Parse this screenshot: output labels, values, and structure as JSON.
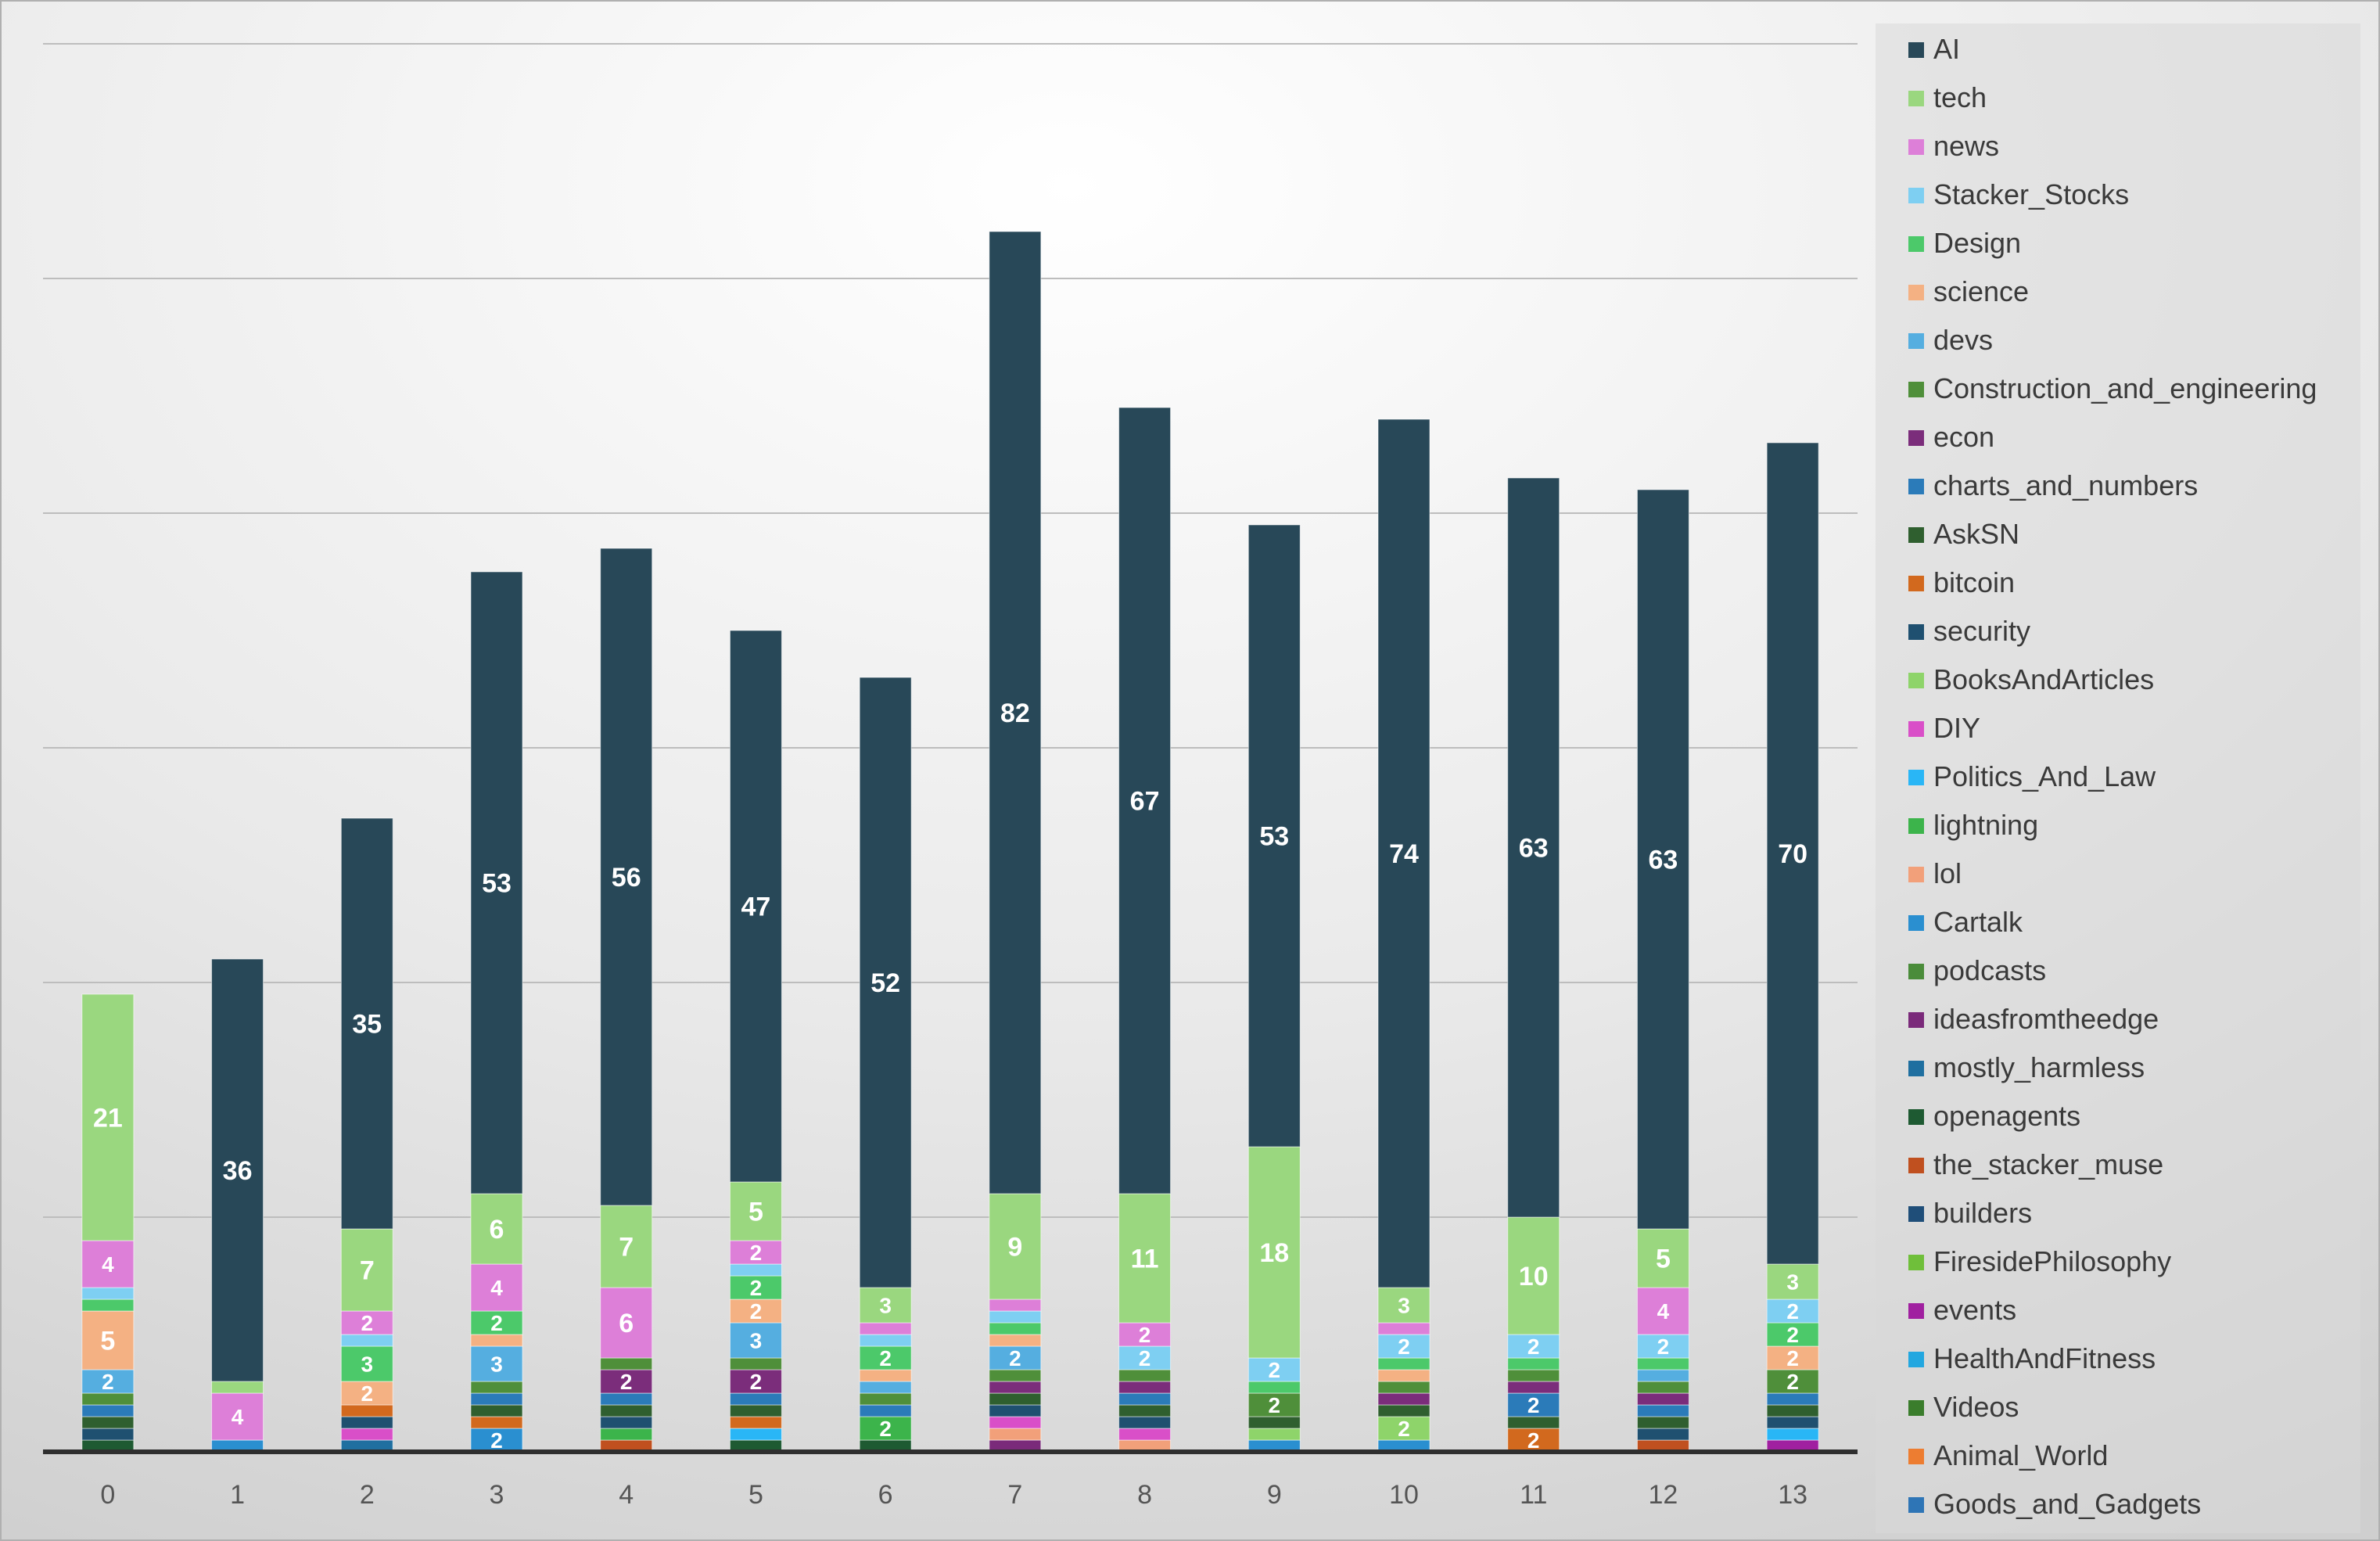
{
  "chart_data": {
    "type": "bar",
    "stacked": true,
    "categories": [
      "0",
      "1",
      "2",
      "3",
      "4",
      "5",
      "6",
      "7",
      "8",
      "9",
      "10",
      "11",
      "12",
      "13"
    ],
    "ylim": [
      0,
      120
    ],
    "gridlines": [
      20,
      40,
      60,
      80,
      100,
      120
    ],
    "legend_position": "right",
    "label_min_value": 2,
    "series": [
      {
        "name": "Goods_and_Gadgets",
        "color": "#2e75b6",
        "values": [
          0,
          0,
          0,
          0,
          0,
          0,
          0,
          0,
          0,
          0,
          0,
          0,
          0,
          0
        ]
      },
      {
        "name": "Animal_World",
        "color": "#ed7d31",
        "values": [
          0,
          0,
          0,
          0,
          0,
          0,
          0,
          0,
          0,
          0,
          0,
          0,
          0,
          0
        ]
      },
      {
        "name": "Videos",
        "color": "#3a7d2c",
        "values": [
          0,
          0,
          0,
          0,
          0,
          0,
          0,
          0,
          0,
          0,
          0,
          0,
          0,
          0
        ]
      },
      {
        "name": "HealthAndFitness",
        "color": "#22a7e0",
        "values": [
          0,
          0,
          0,
          0,
          0,
          0,
          0,
          0,
          0,
          0,
          0,
          0,
          0,
          0
        ]
      },
      {
        "name": "events",
        "color": "#a020a0",
        "values": [
          0,
          0,
          0,
          0,
          0,
          0,
          0,
          0,
          0,
          0,
          0,
          0,
          0,
          1
        ]
      },
      {
        "name": "FiresidePhilosophy",
        "color": "#6fbf3a",
        "values": [
          0,
          0,
          0,
          0,
          0,
          0,
          0,
          0,
          0,
          0,
          0,
          0,
          0,
          0
        ]
      },
      {
        "name": "builders",
        "color": "#1f4e79",
        "values": [
          0,
          0,
          0,
          0,
          0,
          0,
          0,
          0,
          0,
          0,
          0,
          0,
          0,
          0
        ]
      },
      {
        "name": "the_stacker_muse",
        "color": "#c0501f",
        "values": [
          0,
          0,
          0,
          0,
          1,
          0,
          0,
          0,
          0,
          0,
          0,
          0,
          1,
          0
        ]
      },
      {
        "name": "openagents",
        "color": "#1e5a32",
        "values": [
          1,
          0,
          0,
          0,
          0,
          1,
          1,
          0,
          0,
          0,
          0,
          0,
          0,
          0
        ]
      },
      {
        "name": "mostly_harmless",
        "color": "#1f6fa0",
        "values": [
          0,
          0,
          1,
          0,
          0,
          0,
          0,
          0,
          0,
          0,
          0,
          0,
          0,
          0
        ]
      },
      {
        "name": "ideasfromtheedge",
        "color": "#7a2a7a",
        "values": [
          0,
          0,
          0,
          0,
          0,
          0,
          0,
          1,
          0,
          0,
          0,
          0,
          0,
          0
        ]
      },
      {
        "name": "podcasts",
        "color": "#4a8c3a",
        "values": [
          0,
          0,
          0,
          0,
          0,
          0,
          0,
          0,
          0,
          0,
          0,
          0,
          0,
          0
        ]
      },
      {
        "name": "Cartalk",
        "color": "#2a8fd0",
        "values": [
          0,
          1,
          0,
          2,
          0,
          0,
          0,
          0,
          0,
          1,
          1,
          0,
          0,
          0
        ]
      },
      {
        "name": "lol",
        "color": "#f2a07a",
        "values": [
          0,
          0,
          0,
          0,
          0,
          0,
          0,
          1,
          1,
          0,
          0,
          0,
          0,
          0
        ]
      },
      {
        "name": "lightning",
        "color": "#3cb44b",
        "values": [
          0,
          0,
          0,
          0,
          1,
          0,
          2,
          0,
          0,
          0,
          0,
          0,
          0,
          0
        ]
      },
      {
        "name": "Politics_And_Law",
        "color": "#29b6f6",
        "values": [
          0,
          0,
          0,
          0,
          0,
          1,
          0,
          0,
          0,
          0,
          0,
          0,
          0,
          1
        ]
      },
      {
        "name": "DIY",
        "color": "#d94fc8",
        "values": [
          0,
          0,
          1,
          0,
          0,
          0,
          0,
          1,
          1,
          0,
          0,
          0,
          0,
          0
        ]
      },
      {
        "name": "BooksAndArticles",
        "color": "#8ed46a",
        "values": [
          0,
          0,
          0,
          0,
          0,
          0,
          0,
          0,
          0,
          1,
          2,
          0,
          0,
          0
        ]
      },
      {
        "name": "security",
        "color": "#1f5070",
        "values": [
          1,
          0,
          1,
          0,
          1,
          0,
          0,
          1,
          1,
          0,
          0,
          0,
          1,
          1
        ]
      },
      {
        "name": "bitcoin",
        "color": "#d2691e",
        "values": [
          0,
          0,
          1,
          1,
          0,
          1,
          0,
          0,
          0,
          0,
          0,
          2,
          0,
          0
        ]
      },
      {
        "name": "AskSN",
        "color": "#2f5f2f",
        "values": [
          1,
          0,
          0,
          1,
          1,
          1,
          0,
          1,
          1,
          1,
          1,
          1,
          1,
          1
        ]
      },
      {
        "name": "charts_and_numbers",
        "color": "#2b7bb9",
        "values": [
          1,
          0,
          0,
          1,
          1,
          1,
          1,
          0,
          1,
          0,
          0,
          2,
          1,
          1
        ]
      },
      {
        "name": "econ",
        "color": "#7b2d7b",
        "values": [
          0,
          0,
          0,
          0,
          2,
          2,
          0,
          1,
          1,
          0,
          1,
          1,
          1,
          0
        ]
      },
      {
        "name": "Construction_and_engineering",
        "color": "#4f8f3a",
        "values": [
          1,
          0,
          0,
          1,
          1,
          1,
          1,
          1,
          1,
          2,
          1,
          1,
          1,
          2
        ]
      },
      {
        "name": "devs",
        "color": "#55aee0",
        "values": [
          2,
          0,
          0,
          3,
          0,
          3,
          1,
          2,
          0,
          0,
          0,
          0,
          1,
          0
        ]
      },
      {
        "name": "science",
        "color": "#f4b183",
        "values": [
          5,
          0,
          2,
          1,
          0,
          2,
          1,
          1,
          0,
          0,
          1,
          0,
          0,
          2
        ]
      },
      {
        "name": "Design",
        "color": "#4cc96a",
        "values": [
          1,
          0,
          3,
          2,
          0,
          2,
          2,
          1,
          0,
          1,
          1,
          1,
          1,
          2
        ]
      },
      {
        "name": "Stacker_Stocks",
        "color": "#7ecff2",
        "values": [
          1,
          0,
          1,
          0,
          0,
          1,
          1,
          1,
          2,
          2,
          2,
          2,
          2,
          2
        ]
      },
      {
        "name": "news",
        "color": "#dd7fd8",
        "values": [
          4,
          4,
          2,
          4,
          6,
          2,
          1,
          1,
          2,
          0,
          1,
          0,
          4,
          0
        ]
      },
      {
        "name": "tech",
        "color": "#9ad77f",
        "values": [
          21,
          1,
          7,
          6,
          7,
          5,
          3,
          9,
          11,
          18,
          3,
          10,
          5,
          3
        ]
      },
      {
        "name": "AI",
        "color": "#284858",
        "values": [
          0,
          36,
          35,
          53,
          56,
          47,
          52,
          82,
          67,
          53,
          74,
          63,
          63,
          70
        ]
      }
    ],
    "legend_order": [
      "AI",
      "tech",
      "news",
      "Stacker_Stocks",
      "Design",
      "science",
      "devs",
      "Construction_and_engineering",
      "econ",
      "charts_and_numbers",
      "AskSN",
      "bitcoin",
      "security",
      "BooksAndArticles",
      "DIY",
      "Politics_And_Law",
      "lightning",
      "lol",
      "Cartalk",
      "podcasts",
      "ideasfromtheedge",
      "mostly_harmless",
      "openagents",
      "the_stacker_muse",
      "builders",
      "FiresidePhilosophy",
      "events",
      "HealthAndFitness",
      "Videos",
      "Animal_World",
      "Goods_and_Gadgets"
    ]
  }
}
